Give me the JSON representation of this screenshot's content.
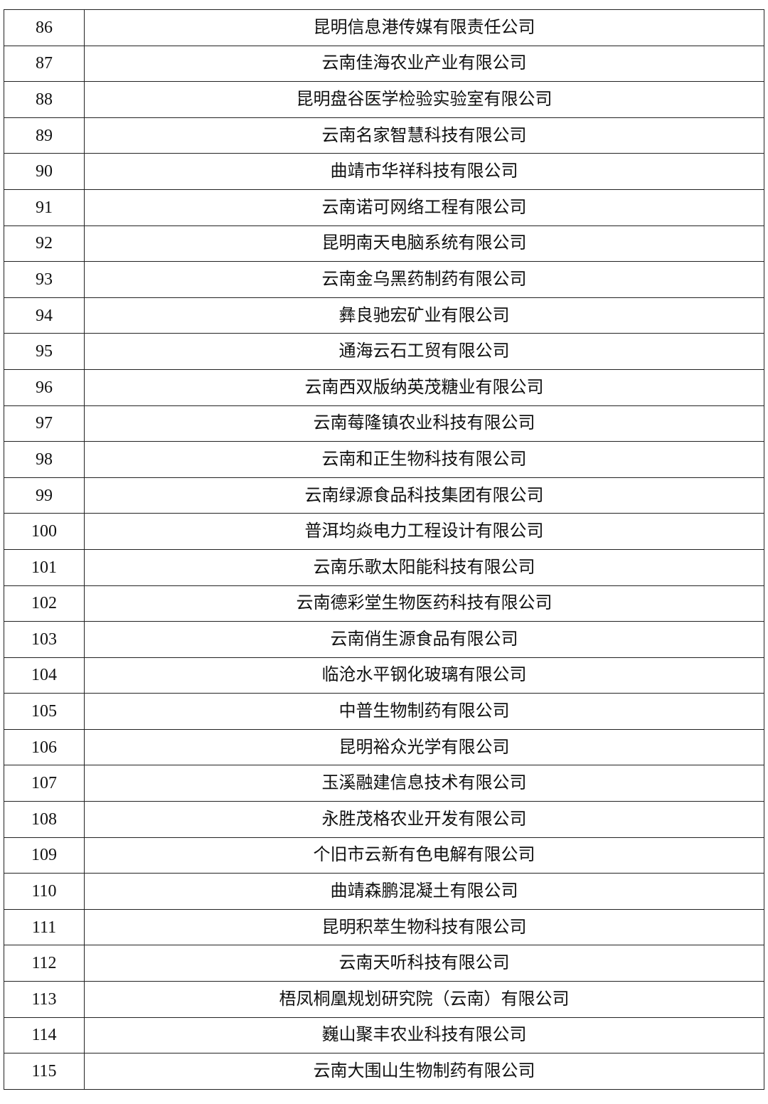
{
  "table": {
    "rows": [
      [
        "86",
        "昆明信息港传媒有限责任公司"
      ],
      [
        "87",
        "云南佳海农业产业有限公司"
      ],
      [
        "88",
        "昆明盘谷医学检验实验室有限公司"
      ],
      [
        "89",
        "云南名家智慧科技有限公司"
      ],
      [
        "90",
        "曲靖市华祥科技有限公司"
      ],
      [
        "91",
        "云南诺可网络工程有限公司"
      ],
      [
        "92",
        "昆明南天电脑系统有限公司"
      ],
      [
        "93",
        "云南金乌黑药制药有限公司"
      ],
      [
        "94",
        "彝良驰宏矿业有限公司"
      ],
      [
        "95",
        "通海云石工贸有限公司"
      ],
      [
        "96",
        "云南西双版纳英茂糖业有限公司"
      ],
      [
        "97",
        "云南莓隆镇农业科技有限公司"
      ],
      [
        "98",
        "云南和正生物科技有限公司"
      ],
      [
        "99",
        "云南绿源食品科技集团有限公司"
      ],
      [
        "100",
        "普洱均焱电力工程设计有限公司"
      ],
      [
        "101",
        "云南乐歌太阳能科技有限公司"
      ],
      [
        "102",
        "云南德彩堂生物医药科技有限公司"
      ],
      [
        "103",
        "云南俏生源食品有限公司"
      ],
      [
        "104",
        "临沧水平钢化玻璃有限公司"
      ],
      [
        "105",
        "中普生物制药有限公司"
      ],
      [
        "106",
        "昆明裕众光学有限公司"
      ],
      [
        "107",
        "玉溪融建信息技术有限公司"
      ],
      [
        "108",
        "永胜茂格农业开发有限公司"
      ],
      [
        "109",
        "个旧市云新有色电解有限公司"
      ],
      [
        "110",
        "曲靖森鹏混凝土有限公司"
      ],
      [
        "111",
        "昆明积萃生物科技有限公司"
      ],
      [
        "112",
        "云南天听科技有限公司"
      ],
      [
        "113",
        "梧凤桐凰规划研究院（云南）有限公司"
      ],
      [
        "114",
        "巍山聚丰农业科技有限公司"
      ],
      [
        "115",
        "云南大围山生物制药有限公司"
      ]
    ]
  }
}
